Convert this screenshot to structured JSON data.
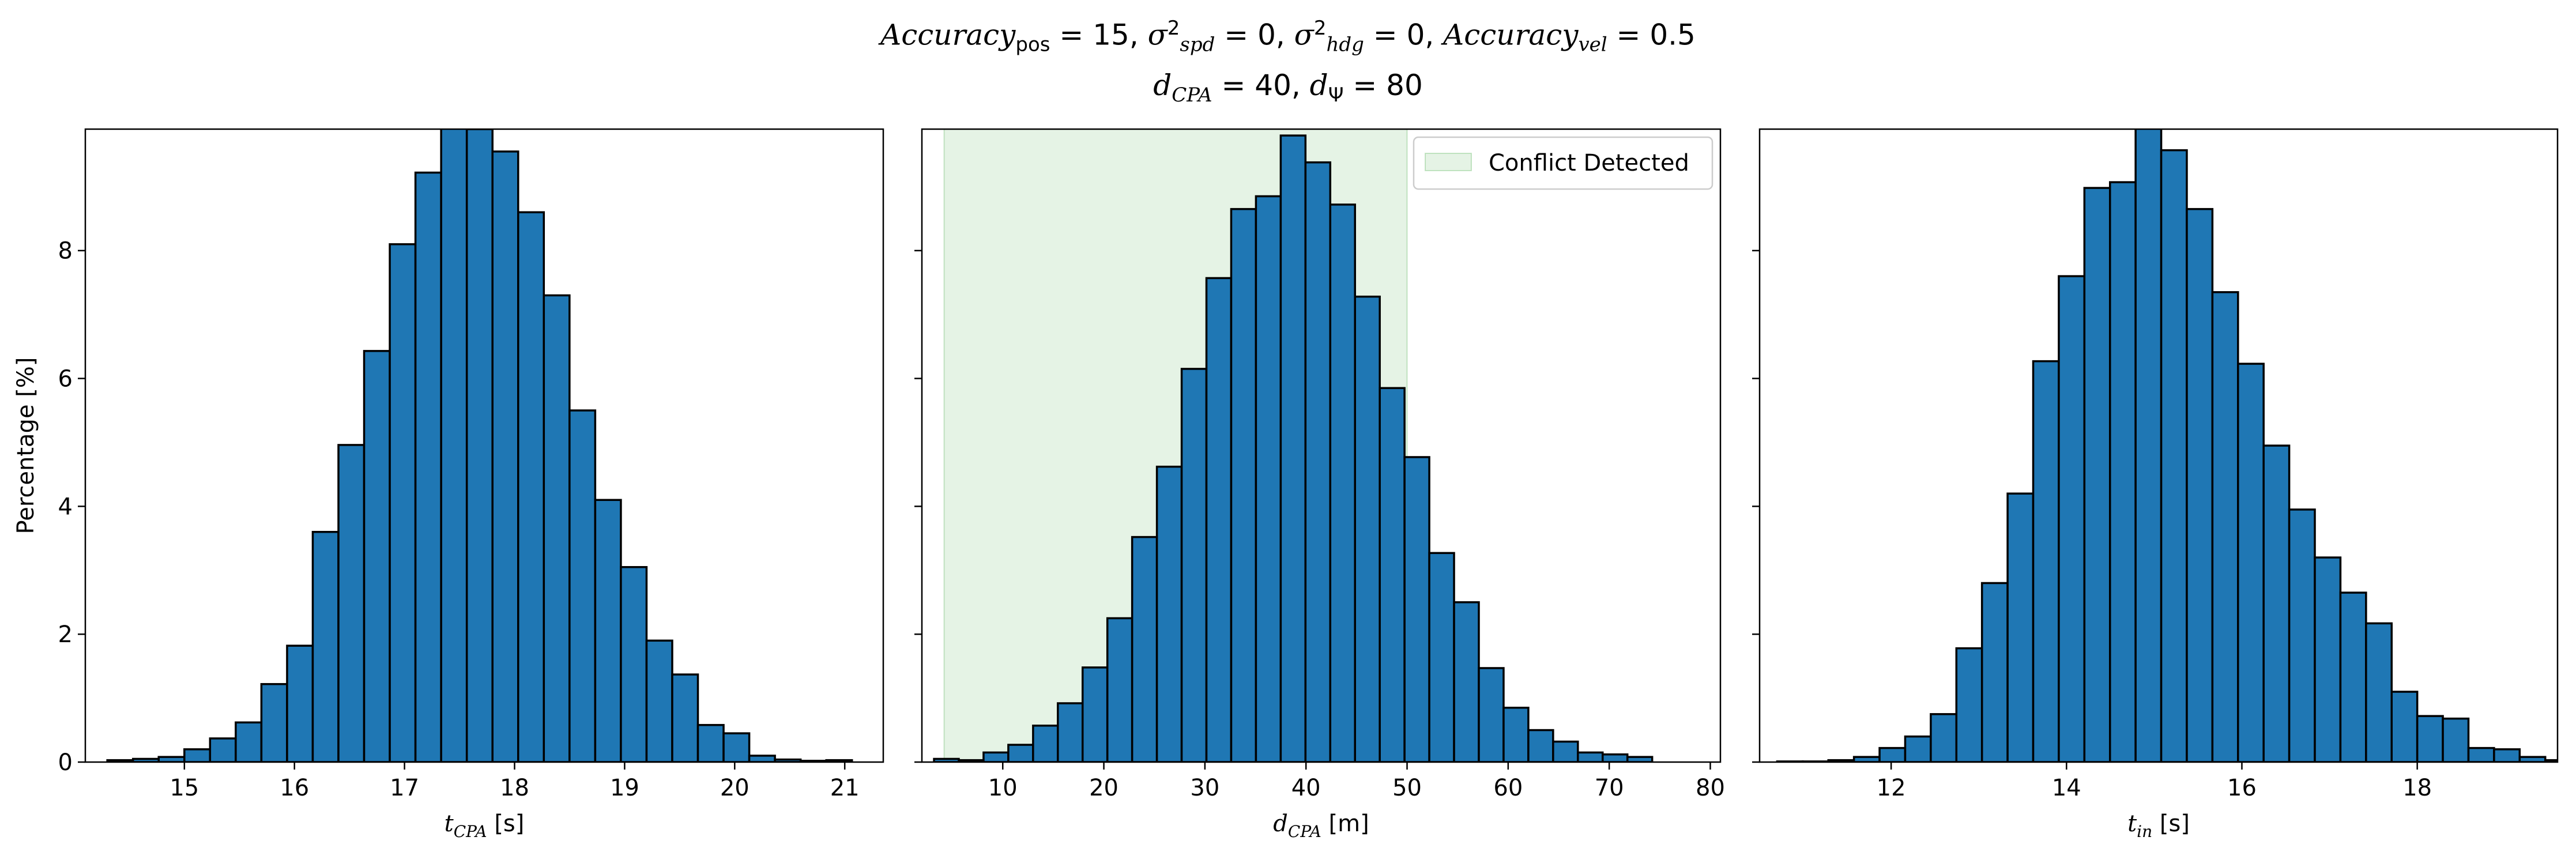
{
  "figure": {
    "title_line1_parts": [
      "Accuracy",
      "pos",
      " = 15, ",
      "σ",
      "2",
      "spd",
      " = 0, ",
      "σ",
      "2",
      "hdg",
      " = 0, ",
      "Accuracy",
      "vel",
      " = 0.5"
    ],
    "title_line2_parts": [
      "d",
      "CPA",
      " = 40, ",
      "d",
      "Ψ",
      " = 80"
    ],
    "colors": {
      "bar_fill": "#1f77b4",
      "bar_edge": "#000000",
      "shade": "#2ca02c"
    }
  },
  "chart_data": [
    {
      "type": "bar",
      "panel": "left",
      "xlabel": "t_CPA [s]",
      "xlabel_main": "t",
      "xlabel_sub": "CPA",
      "xlabel_unit": " [s]",
      "ylabel": "Percentage [%]",
      "xlim": [
        14.1,
        21.35
      ],
      "ylim": [
        0,
        9.9
      ],
      "xticks": [
        15,
        16,
        17,
        18,
        19,
        20,
        21
      ],
      "yticks": [
        0,
        2,
        4,
        6,
        8
      ],
      "bin_start": 14.3,
      "bin_width": 0.2333,
      "values": [
        0.03,
        0.05,
        0.08,
        0.2,
        0.37,
        0.62,
        1.22,
        1.82,
        3.6,
        4.96,
        6.43,
        8.1,
        9.22,
        10.0,
        9.9,
        9.55,
        8.6,
        7.3,
        5.5,
        4.1,
        3.05,
        1.9,
        1.37,
        0.58,
        0.45,
        0.1,
        0.04,
        0.02,
        0.03
      ]
    },
    {
      "type": "bar",
      "panel": "middle",
      "xlabel": "d_CPA [m]",
      "xlabel_main": "d",
      "xlabel_sub": "CPA",
      "xlabel_unit": " [m]",
      "ylabel": "",
      "xlim": [
        2.0,
        81.0
      ],
      "ylim": [
        0,
        9.9
      ],
      "xticks": [
        10,
        20,
        30,
        40,
        50,
        60,
        70,
        80
      ],
      "yticks": [
        0,
        2,
        4,
        6,
        8
      ],
      "bin_start": 3.2,
      "bin_width": 2.45,
      "values": [
        0.05,
        0.03,
        0.15,
        0.27,
        0.57,
        0.92,
        1.48,
        2.25,
        3.52,
        4.62,
        6.15,
        7.57,
        8.65,
        8.85,
        9.8,
        9.38,
        8.72,
        7.28,
        5.85,
        4.77,
        3.27,
        2.5,
        1.47,
        0.85,
        0.5,
        0.32,
        0.15,
        0.12,
        0.08
      ],
      "shaded_region": {
        "x0": 4.2,
        "x1": 50.0,
        "label": "Conflict Detected"
      },
      "legend": "top-right"
    },
    {
      "type": "bar",
      "panel": "right",
      "xlabel": "t_in [s]",
      "xlabel_main": "t",
      "xlabel_sub": "in",
      "xlabel_unit": " [s]",
      "ylabel": "",
      "xlim": [
        10.5,
        19.6
      ],
      "ylim": [
        0,
        9.9
      ],
      "xticks": [
        12,
        14,
        16,
        18
      ],
      "yticks": [
        0,
        2,
        4,
        6,
        8
      ],
      "bin_start": 10.7,
      "bin_width": 0.292,
      "values": [
        0.01,
        0.01,
        0.03,
        0.08,
        0.22,
        0.4,
        0.75,
        1.78,
        2.8,
        4.2,
        6.27,
        7.6,
        8.98,
        9.07,
        10.0,
        9.57,
        8.65,
        7.35,
        6.23,
        4.95,
        3.95,
        3.2,
        2.65,
        2.17,
        1.1,
        0.72,
        0.68,
        0.22,
        0.2,
        0.08,
        0.03
      ]
    }
  ]
}
